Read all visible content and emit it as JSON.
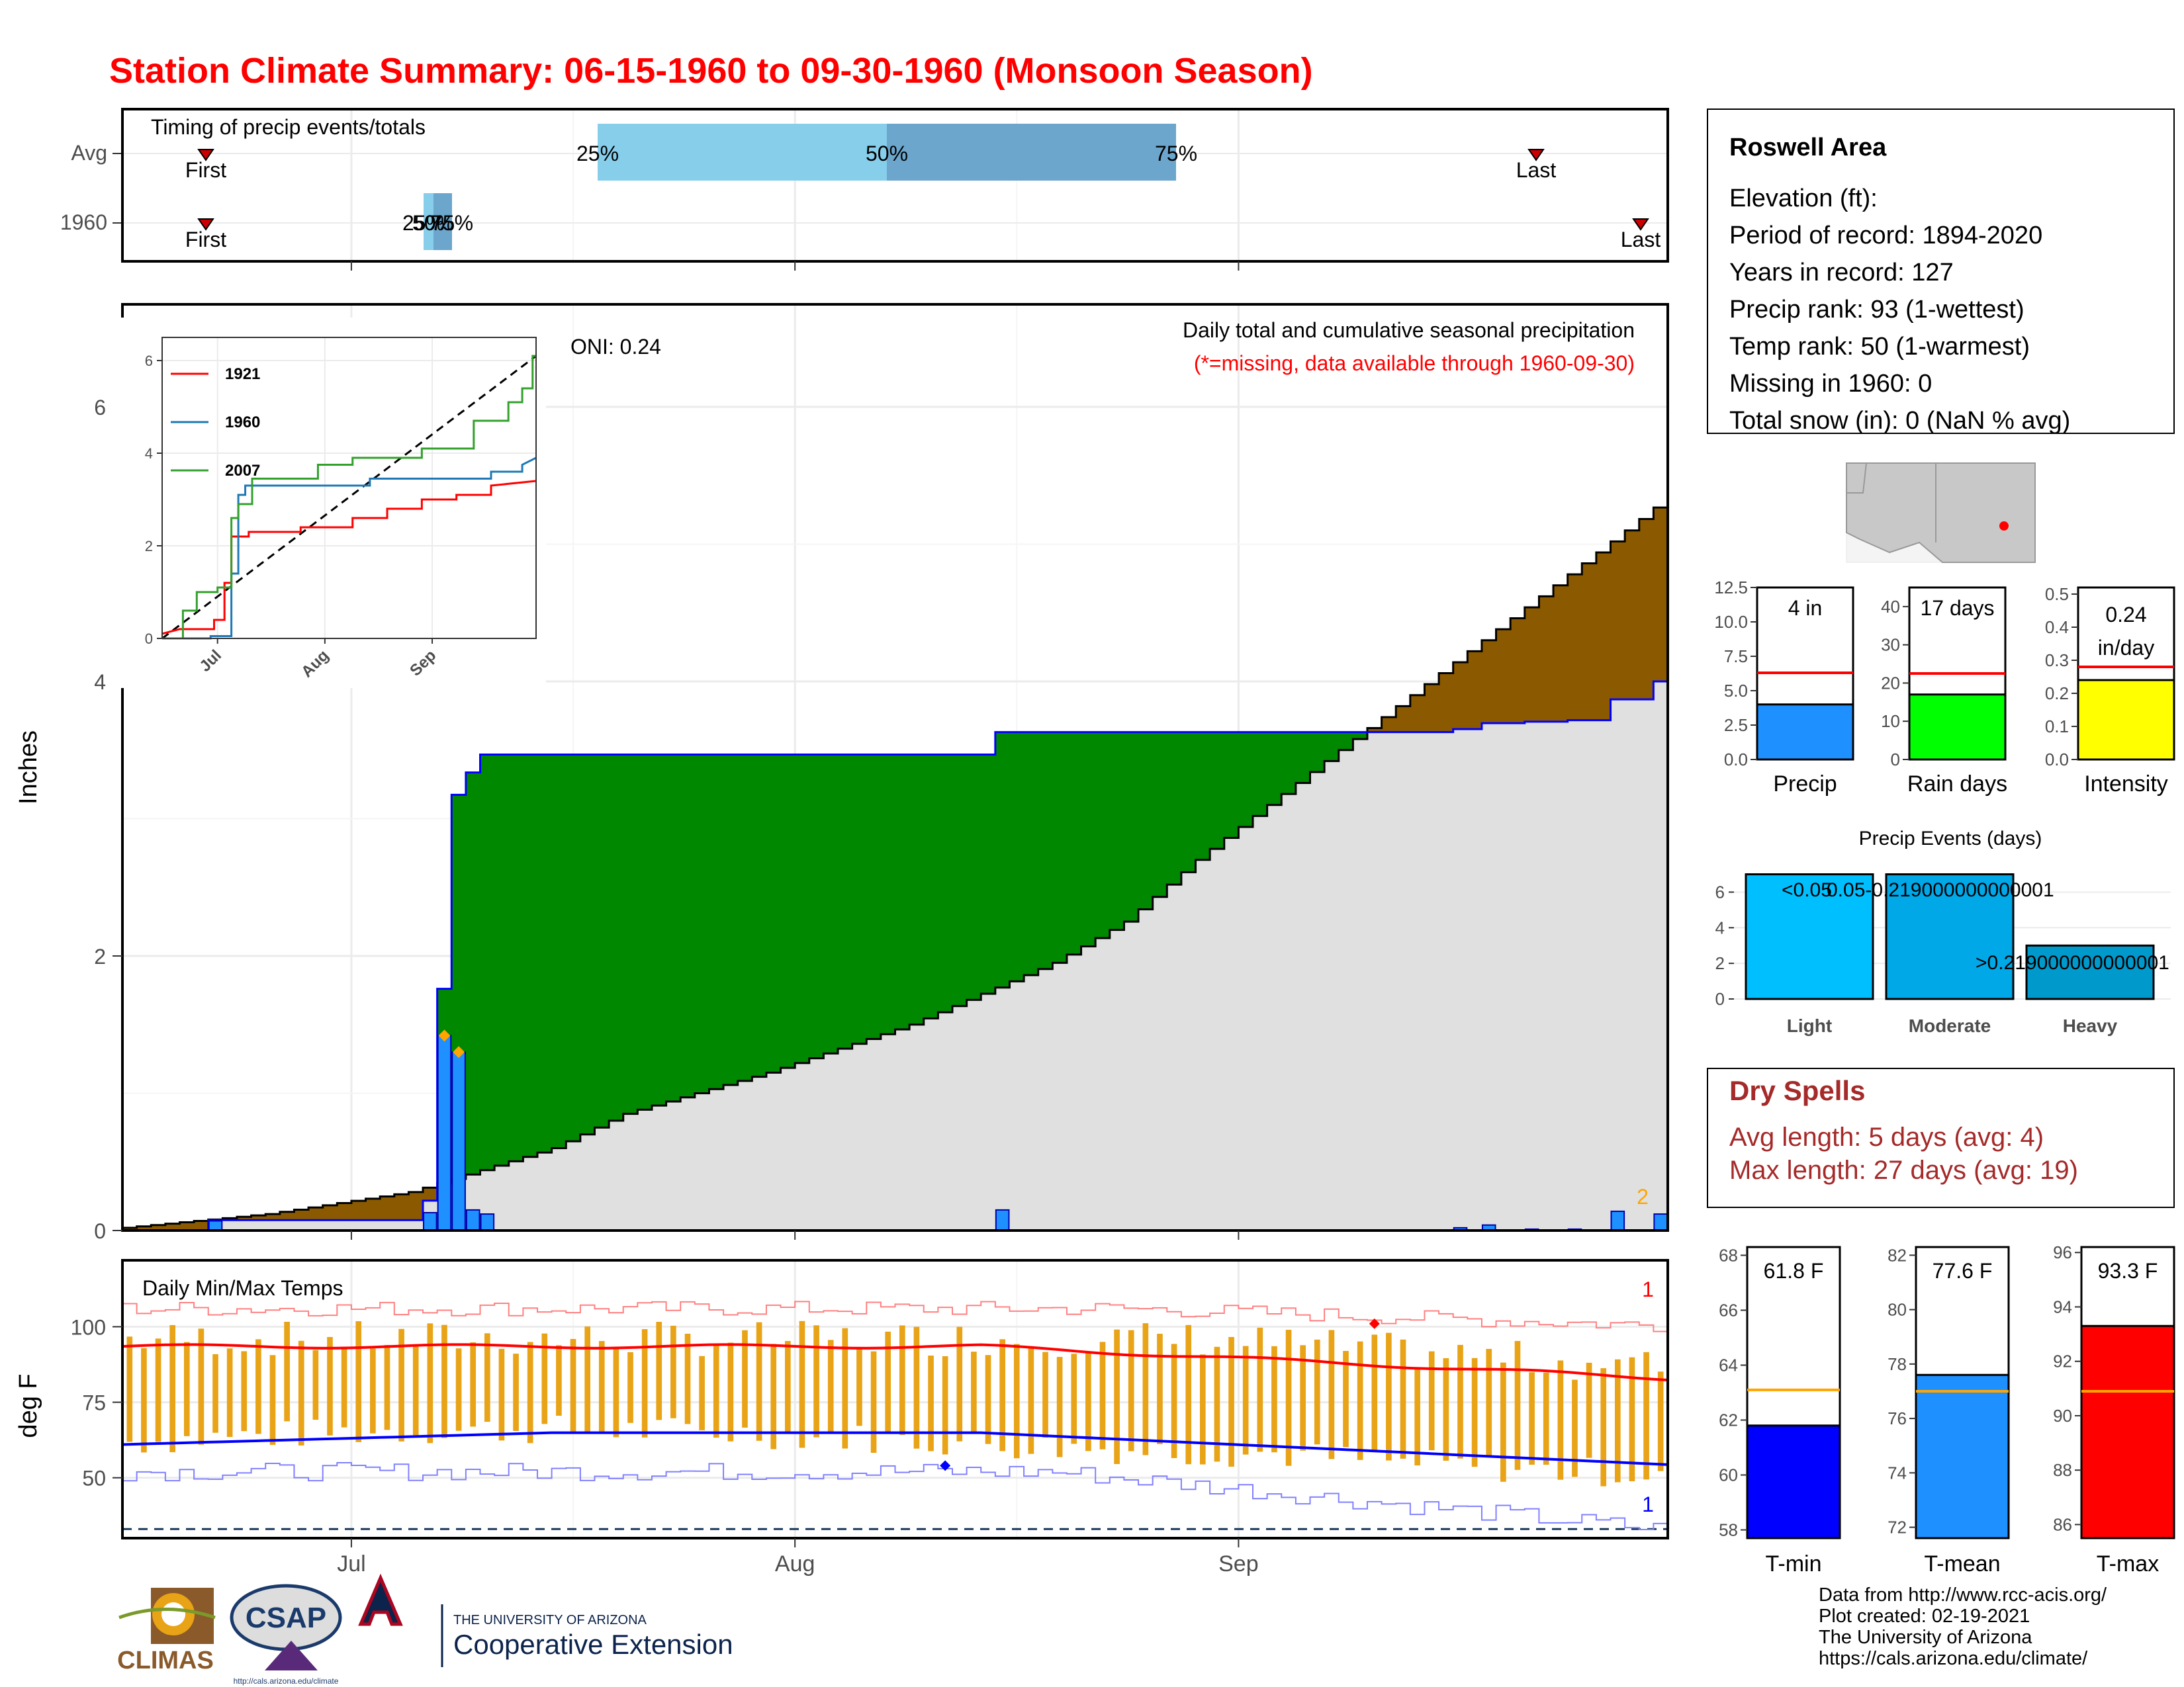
{
  "title": "Station Climate Summary: 06-15-1960 to 09-30-1960 (Monsoon Season)",
  "colors": {
    "title": "#ff0000",
    "cum_avg": "#8b5a00",
    "cum_gain": "#008800",
    "cum_base": "#e0e0e0",
    "daily_bar": "#1e90ff",
    "tmax": "#ff0000",
    "tmin": "#0000ff",
    "range_bar": "#e8a317",
    "dry_spells": "#a52a2a",
    "light": "#00bfff",
    "moderate": "#00a8e8",
    "heavy": "#0099cc",
    "rain_days": "#00ff00",
    "intensity": "#ffff00",
    "tmean": "#1e90ff",
    "avg_line": "#ff0000",
    "avg_temp_line": "#ffa500"
  },
  "timing": {
    "title": "Timing of precip events/totals",
    "rows": [
      {
        "label": "Avg",
        "first": "First",
        "last": "Last",
        "p25": "25%",
        "p50": "50%",
        "p75": "75%"
      },
      {
        "label": "1960",
        "first": "First",
        "last": "Last",
        "p25": "25%",
        "p50": "50%",
        "p75": "75%"
      }
    ]
  },
  "precip_panel": {
    "ylabel": "Inches",
    "oni": "ONI: 0.24",
    "subtitle": "Daily total and cumulative seasonal precipitation",
    "missing_note": "(*=missing, data available through 1960-09-30)",
    "corner_count": "2",
    "yticks": [
      "0",
      "2",
      "4",
      "6"
    ],
    "xticks": [
      "Jul",
      "Aug",
      "Sep"
    ]
  },
  "inset": {
    "yticks": [
      "0",
      "2",
      "4",
      "6"
    ],
    "xticks": [
      "Jul",
      "Aug",
      "Sep"
    ],
    "legend": [
      {
        "name": "1921",
        "color": "#ff0000"
      },
      {
        "name": "1960",
        "color": "#1f78b4"
      },
      {
        "name": "2007",
        "color": "#33a02c"
      }
    ]
  },
  "temp_panel": {
    "title": "Daily Min/Max Temps",
    "ylabel": "deg F",
    "yticks": [
      "50",
      "75",
      "100"
    ],
    "record_high_count": "1",
    "record_low_count": "1"
  },
  "xaxis": {
    "labels": [
      "Jul",
      "Aug",
      "Sep"
    ]
  },
  "station": {
    "name": "Roswell Area",
    "lines": [
      "Elevation (ft):",
      "Period of record: 1894-2020",
      "Years in record: 127",
      "Precip rank: 93 (1-wettest)",
      "Temp rank: 50 (1-warmest)",
      "Missing in 1960: 0",
      "Total snow (in): 0 (NaN % avg)"
    ]
  },
  "mini_bars": [
    {
      "label": "Precip",
      "value_text": "4 in",
      "value_text2": "",
      "value": 4.0,
      "avg": 6.3,
      "ymax": 12.5,
      "yticks": [
        "0.0",
        "2.5",
        "5.0",
        "7.5",
        "10.0",
        "12.5"
      ],
      "color": "#1e90ff"
    },
    {
      "label": "Rain days",
      "value_text": "17 days",
      "value_text2": "",
      "value": 17,
      "avg": 22.5,
      "ymax": 45,
      "yticks": [
        "0",
        "10",
        "20",
        "30",
        "40"
      ],
      "color": "#00ff00"
    },
    {
      "label": "Intensity",
      "value_text": "0.24",
      "value_text2": "in/day",
      "value": 0.24,
      "avg": 0.28,
      "ymax": 0.52,
      "yticks": [
        "0.0",
        "0.1",
        "0.2",
        "0.3",
        "0.4",
        "0.5"
      ],
      "color": "#ffff00"
    }
  ],
  "events": {
    "title": "Precip Events (days)",
    "yticks": [
      "0",
      "2",
      "4",
      "6"
    ],
    "bars": [
      {
        "label": "Light",
        "value": 7,
        "annot": "<0.05"
      },
      {
        "label": "Moderate",
        "value": 7,
        "annot": "0.05-0.219000000000001"
      },
      {
        "label": "Heavy",
        "value": 3,
        "annot": ">0.219000000000001"
      }
    ]
  },
  "dry_spells": {
    "title": "Dry Spells",
    "avg_length": "Avg length: 5 days (avg: 4)",
    "max_length": "Max length: 27 days (avg: 19)"
  },
  "temp_bars": [
    {
      "label": "T-min",
      "value_text": "61.8 F",
      "value": 61.8,
      "avg": 63.1,
      "ymin": 57.7,
      "ymax": 68.3,
      "yticks": [
        "58",
        "60",
        "62",
        "64",
        "66",
        "68"
      ],
      "ytick_vals": [
        58,
        60,
        62,
        64,
        66,
        68
      ],
      "color": "#0000ff"
    },
    {
      "label": "T-mean",
      "value_text": "77.6 F",
      "value": 77.6,
      "avg": 77.0,
      "ymin": 71.6,
      "ymax": 82.3,
      "yticks": [
        "72",
        "74",
        "76",
        "78",
        "80",
        "82"
      ],
      "ytick_vals": [
        72,
        74,
        76,
        78,
        80,
        82
      ],
      "color": "#1e90ff"
    },
    {
      "label": "T-max",
      "value_text": "93.3 F",
      "value": 93.3,
      "avg": 90.9,
      "ymin": 85.5,
      "ymax": 96.2,
      "yticks": [
        "86",
        "88",
        "90",
        "92",
        "94",
        "96"
      ],
      "ytick_vals": [
        86,
        88,
        90,
        92,
        94,
        96
      ],
      "color": "#ff0000"
    }
  ],
  "credits": [
    "Data from http://www.rcc-acis.org/",
    "Plot created: 02-19-2021",
    "The University of Arizona",
    "https://cals.arizona.edu/climate/"
  ],
  "logos": {
    "climas": "CLIMAS",
    "csap": "CSAP",
    "csap_url": "http://cals.arizona.edu/climate",
    "ua_small": "THE UNIVERSITY OF ARIZONA",
    "ua_big": "Cooperative Extension"
  }
}
